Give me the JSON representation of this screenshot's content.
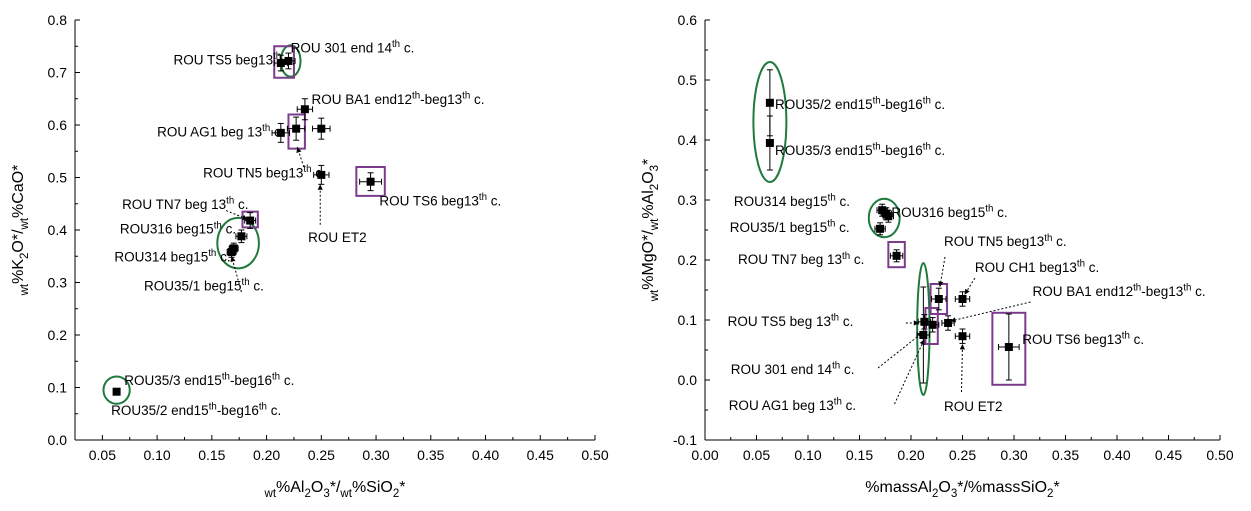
{
  "chart_data": [
    {
      "type": "scatter",
      "xlim": [
        0.025,
        0.5
      ],
      "ylim": [
        0.0,
        0.8
      ],
      "x_ticks": [
        "0.05",
        "0.10",
        "0.15",
        "0.20",
        "0.25",
        "0.30",
        "0.35",
        "0.40",
        "0.45",
        "0.50"
      ],
      "y_ticks": [
        "0.0",
        "0.1",
        "0.2",
        "0.3",
        "0.4",
        "0.5",
        "0.6",
        "0.7",
        "0.8"
      ],
      "xlabel": [
        {
          "t": "wt",
          "s": "sub"
        },
        {
          "t": "%Al"
        },
        {
          "t": "2",
          "s": "sub"
        },
        {
          "t": "O"
        },
        {
          "t": "3",
          "s": "sub"
        },
        {
          "t": "*/"
        },
        {
          "t": "wt",
          "s": "sub"
        },
        {
          "t": "%SiO"
        },
        {
          "t": "2",
          "s": "sub"
        },
        {
          "t": "*"
        }
      ],
      "ylabel": [
        {
          "t": "wt",
          "s": "sub"
        },
        {
          "t": "%K"
        },
        {
          "t": "2",
          "s": "sub"
        },
        {
          "t": "O*/"
        },
        {
          "t": "wt",
          "s": "sub"
        },
        {
          "t": "%CaO*"
        }
      ],
      "points": [
        {
          "x": 0.063,
          "y": 0.092,
          "xerr": 0.002,
          "yerr": 0.005
        },
        {
          "x": 0.213,
          "y": 0.718,
          "xerr": 0.006,
          "yerr": 0.015
        },
        {
          "x": 0.22,
          "y": 0.722,
          "xerr": 0.006,
          "yerr": 0.015
        },
        {
          "x": 0.213,
          "y": 0.585,
          "xerr": 0.008,
          "yerr": 0.018
        },
        {
          "x": 0.227,
          "y": 0.593,
          "xerr": 0.008,
          "yerr": 0.022
        },
        {
          "x": 0.235,
          "y": 0.63,
          "xerr": 0.007,
          "yerr": 0.02
        },
        {
          "x": 0.25,
          "y": 0.593,
          "xerr": 0.008,
          "yerr": 0.02
        },
        {
          "x": 0.25,
          "y": 0.505,
          "xerr": 0.007,
          "yerr": 0.018
        },
        {
          "x": 0.295,
          "y": 0.492,
          "xerr": 0.01,
          "yerr": 0.017
        },
        {
          "x": 0.185,
          "y": 0.418,
          "xerr": 0.005,
          "yerr": 0.015
        },
        {
          "x": 0.177,
          "y": 0.388,
          "xerr": 0.005,
          "yerr": 0.012
        },
        {
          "x": 0.17,
          "y": 0.365,
          "xerr": 0.004,
          "yerr": 0.01
        },
        {
          "x": 0.168,
          "y": 0.358,
          "xerr": 0.004,
          "yerr": 0.01
        }
      ],
      "ellipses": [
        {
          "x": 0.063,
          "y": 0.095,
          "rx": 0.012,
          "ry": 0.026
        },
        {
          "x": 0.222,
          "y": 0.722,
          "rx": 0.009,
          "ry": 0.03
        },
        {
          "x": 0.174,
          "y": 0.375,
          "rx": 0.019,
          "ry": 0.048
        }
      ],
      "boxes": [
        {
          "x0": 0.207,
          "x1": 0.225,
          "y0": 0.69,
          "y1": 0.75
        },
        {
          "x0": 0.22,
          "x1": 0.235,
          "y0": 0.555,
          "y1": 0.62
        },
        {
          "x0": 0.178,
          "x1": 0.192,
          "y0": 0.405,
          "y1": 0.435
        },
        {
          "x0": 0.282,
          "x1": 0.308,
          "y0": 0.465,
          "y1": 0.52
        }
      ],
      "annotations": [
        {
          "parts": [
            {
              "t": "ROU TS5 beg13"
            },
            {
              "t": "th",
              "s": "sup"
            },
            {
              "t": " c."
            }
          ],
          "x": 0.115,
          "y": 0.715
        },
        {
          "parts": [
            {
              "t": "ROU 301 end 14"
            },
            {
              "t": "th",
              "s": "sup"
            },
            {
              "t": " c."
            }
          ],
          "x": 0.222,
          "y": 0.738
        },
        {
          "parts": [
            {
              "t": "ROU BA1 end12"
            },
            {
              "t": "th",
              "s": "sup"
            },
            {
              "t": "-beg13"
            },
            {
              "t": "th",
              "s": "sup"
            },
            {
              "t": " c."
            }
          ],
          "x": 0.241,
          "y": 0.64
        },
        {
          "parts": [
            {
              "t": "ROU AG1 beg 13"
            },
            {
              "t": "th",
              "s": "sup"
            },
            {
              "t": " c."
            }
          ],
          "x": 0.1,
          "y": 0.578
        },
        {
          "parts": [
            {
              "t": "ROU TN5 beg13"
            },
            {
              "t": "th",
              "s": "sup"
            },
            {
              "t": " c."
            }
          ],
          "x": 0.142,
          "y": 0.5
        },
        {
          "parts": [
            {
              "t": "ROU TS6 beg13"
            },
            {
              "t": "th",
              "s": "sup"
            },
            {
              "t": " c."
            }
          ],
          "x": 0.303,
          "y": 0.447
        },
        {
          "parts": [
            {
              "t": "ROU TN7 beg 13"
            },
            {
              "t": "th",
              "s": "sup"
            },
            {
              "t": " c."
            }
          ],
          "x": 0.068,
          "y": 0.44
        },
        {
          "parts": [
            {
              "t": "ROU ET2"
            }
          ],
          "x": 0.238,
          "y": 0.377
        },
        {
          "parts": [
            {
              "t": "ROU316 beg15"
            },
            {
              "t": "th",
              "s": "sup"
            },
            {
              "t": " c."
            }
          ],
          "x": 0.066,
          "y": 0.393
        },
        {
          "parts": [
            {
              "t": "ROU314 beg15"
            },
            {
              "t": "th",
              "s": "sup"
            },
            {
              "t": " c."
            }
          ],
          "x": 0.061,
          "y": 0.34
        },
        {
          "parts": [
            {
              "t": "ROU35/1 beg15"
            },
            {
              "t": "th",
              "s": "sup"
            },
            {
              "t": " c."
            }
          ],
          "x": 0.088,
          "y": 0.285
        },
        {
          "parts": [
            {
              "t": "ROU35/3 end15"
            },
            {
              "t": "th",
              "s": "sup"
            },
            {
              "t": "-beg16"
            },
            {
              "t": "th",
              "s": "sup"
            },
            {
              "t": " c."
            }
          ],
          "x": 0.07,
          "y": 0.105
        },
        {
          "parts": [
            {
              "t": "ROU35/2 end15"
            },
            {
              "t": "th",
              "s": "sup"
            },
            {
              "t": "-beg16"
            },
            {
              "t": "th",
              "s": "sup"
            },
            {
              "t": " c."
            }
          ],
          "x": 0.058,
          "y": 0.048
        }
      ],
      "arrows": [
        {
          "x1": 0.234,
          "y1": 0.52,
          "x2": 0.228,
          "y2": 0.558
        },
        {
          "x1": 0.249,
          "y1": 0.41,
          "x2": 0.249,
          "y2": 0.487
        },
        {
          "x1": 0.163,
          "y1": 0.437,
          "x2": 0.183,
          "y2": 0.42
        },
        {
          "x1": 0.177,
          "y1": 0.282,
          "x2": 0.168,
          "y2": 0.35
        }
      ]
    },
    {
      "type": "scatter",
      "xlim": [
        0.0,
        0.5
      ],
      "ylim": [
        -0.1,
        0.6
      ],
      "x_ticks": [
        "0.00",
        "0.05",
        "0.10",
        "0.15",
        "0.20",
        "0.25",
        "0.30",
        "0.35",
        "0.40",
        "0.45",
        "0.50"
      ],
      "y_ticks": [
        "-0.1",
        "0.0",
        "0.1",
        "0.2",
        "0.3",
        "0.4",
        "0.5",
        "0.6"
      ],
      "xlabel": [
        {
          "t": "%massAl"
        },
        {
          "t": "2",
          "s": "sub"
        },
        {
          "t": "O"
        },
        {
          "t": "3",
          "s": "sub"
        },
        {
          "t": "*/%massSiO"
        },
        {
          "t": "2",
          "s": "sub"
        },
        {
          "t": "*"
        }
      ],
      "ylabel": [
        {
          "t": "wt",
          "s": "sub"
        },
        {
          "t": "%MgO*/"
        },
        {
          "t": "wt",
          "s": "sub"
        },
        {
          "t": "%Al"
        },
        {
          "t": "2",
          "s": "sub"
        },
        {
          "t": "O"
        },
        {
          "t": "3",
          "s": "sub"
        },
        {
          "t": "*"
        }
      ],
      "points": [
        {
          "x": 0.063,
          "y": 0.462,
          "xerr": 0.002,
          "yerr": 0.055
        },
        {
          "x": 0.063,
          "y": 0.395,
          "xerr": 0.002,
          "yerr": 0.045
        },
        {
          "x": 0.172,
          "y": 0.283,
          "xerr": 0.005,
          "yerr": 0.01
        },
        {
          "x": 0.176,
          "y": 0.277,
          "xerr": 0.005,
          "yerr": 0.01
        },
        {
          "x": 0.178,
          "y": 0.273,
          "xerr": 0.005,
          "yerr": 0.01
        },
        {
          "x": 0.17,
          "y": 0.252,
          "xerr": 0.005,
          "yerr": 0.01
        },
        {
          "x": 0.186,
          "y": 0.207,
          "xerr": 0.006,
          "yerr": 0.01
        },
        {
          "x": 0.227,
          "y": 0.135,
          "xerr": 0.007,
          "yerr": 0.018
        },
        {
          "x": 0.25,
          "y": 0.135,
          "xerr": 0.007,
          "yerr": 0.012
        },
        {
          "x": 0.213,
          "y": 0.097,
          "xerr": 0.006,
          "yerr": 0.012
        },
        {
          "x": 0.221,
          "y": 0.092,
          "xerr": 0.006,
          "yerr": 0.012
        },
        {
          "x": 0.236,
          "y": 0.095,
          "xerr": 0.006,
          "yerr": 0.012
        },
        {
          "x": 0.212,
          "y": 0.075,
          "xerr": 0.006,
          "yerr": 0.08
        },
        {
          "x": 0.25,
          "y": 0.073,
          "xerr": 0.007,
          "yerr": 0.012
        },
        {
          "x": 0.295,
          "y": 0.055,
          "xerr": 0.01,
          "yerr": 0.055
        }
      ],
      "ellipses": [
        {
          "x": 0.063,
          "y": 0.43,
          "rx": 0.016,
          "ry": 0.1
        },
        {
          "x": 0.174,
          "y": 0.27,
          "rx": 0.015,
          "ry": 0.032
        },
        {
          "x": 0.212,
          "y": 0.085,
          "rx": 0.006,
          "ry": 0.11
        }
      ],
      "boxes": [
        {
          "x0": 0.178,
          "x1": 0.194,
          "y0": 0.188,
          "y1": 0.23
        },
        {
          "x0": 0.219,
          "x1": 0.235,
          "y0": 0.11,
          "y1": 0.16
        },
        {
          "x0": 0.214,
          "x1": 0.226,
          "y0": 0.06,
          "y1": 0.12
        },
        {
          "x0": 0.279,
          "x1": 0.311,
          "y0": -0.008,
          "y1": 0.112
        }
      ],
      "annotations": [
        {
          "parts": [
            {
              "t": "ROU35/2 end15"
            },
            {
              "t": "th",
              "s": "sup"
            },
            {
              "t": "-beg16"
            },
            {
              "t": "th",
              "s": "sup"
            },
            {
              "t": " c."
            }
          ],
          "x": 0.068,
          "y": 0.452
        },
        {
          "parts": [
            {
              "t": "ROU35/3 end15"
            },
            {
              "t": "th",
              "s": "sup"
            },
            {
              "t": "-beg16"
            },
            {
              "t": "th",
              "s": "sup"
            },
            {
              "t": " c."
            }
          ],
          "x": 0.068,
          "y": 0.375
        },
        {
          "parts": [
            {
              "t": "ROU314 beg15"
            },
            {
              "t": "th",
              "s": "sup"
            },
            {
              "t": " c."
            }
          ],
          "x": 0.028,
          "y": 0.29
        },
        {
          "parts": [
            {
              "t": "ROU316 beg15"
            },
            {
              "t": "th",
              "s": "sup"
            },
            {
              "t": " c."
            }
          ],
          "x": 0.181,
          "y": 0.272
        },
        {
          "parts": [
            {
              "t": "ROU35/1 beg15"
            },
            {
              "t": "th",
              "s": "sup"
            },
            {
              "t": " c."
            }
          ],
          "x": 0.024,
          "y": 0.247
        },
        {
          "parts": [
            {
              "t": "ROU TN5 beg13"
            },
            {
              "t": "th",
              "s": "sup"
            },
            {
              "t": " c."
            }
          ],
          "x": 0.232,
          "y": 0.223
        },
        {
          "parts": [
            {
              "t": "ROU TN7 beg 13"
            },
            {
              "t": "th",
              "s": "sup"
            },
            {
              "t": " c."
            }
          ],
          "x": 0.032,
          "y": 0.193
        },
        {
          "parts": [
            {
              "t": "ROU CH1 beg13"
            },
            {
              "t": "th",
              "s": "sup"
            },
            {
              "t": " c."
            }
          ],
          "x": 0.262,
          "y": 0.18
        },
        {
          "parts": [
            {
              "t": "ROU BA1 end12"
            },
            {
              "t": "th",
              "s": "sup"
            },
            {
              "t": "-beg13"
            },
            {
              "t": "th",
              "s": "sup"
            },
            {
              "t": " c."
            }
          ],
          "x": 0.318,
          "y": 0.14
        },
        {
          "parts": [
            {
              "t": "ROU TS5 beg 13"
            },
            {
              "t": "th",
              "s": "sup"
            },
            {
              "t": " c."
            }
          ],
          "x": 0.022,
          "y": 0.09
        },
        {
          "parts": [
            {
              "t": "ROU TS6 beg13"
            },
            {
              "t": "th",
              "s": "sup"
            },
            {
              "t": " c."
            }
          ],
          "x": 0.308,
          "y": 0.06
        },
        {
          "parts": [
            {
              "t": "ROU 301 end 14"
            },
            {
              "t": "th",
              "s": "sup"
            },
            {
              "t": " c."
            }
          ],
          "x": 0.025,
          "y": 0.01
        },
        {
          "parts": [
            {
              "t": "ROU AG1 beg 13"
            },
            {
              "t": "th",
              "s": "sup"
            },
            {
              "t": " c."
            }
          ],
          "x": 0.023,
          "y": -0.05
        },
        {
          "parts": [
            {
              "t": "ROU ET2"
            }
          ],
          "x": 0.232,
          "y": -0.052
        }
      ],
      "arrows": [
        {
          "x1": 0.233,
          "y1": 0.205,
          "x2": 0.228,
          "y2": 0.155
        },
        {
          "x1": 0.262,
          "y1": 0.17,
          "x2": 0.252,
          "y2": 0.142
        },
        {
          "x1": 0.316,
          "y1": 0.13,
          "x2": 0.238,
          "y2": 0.098
        },
        {
          "x1": 0.195,
          "y1": 0.095,
          "x2": 0.208,
          "y2": 0.095
        },
        {
          "x1": 0.168,
          "y1": 0.02,
          "x2": 0.212,
          "y2": 0.08
        },
        {
          "x1": 0.184,
          "y1": -0.04,
          "x2": 0.213,
          "y2": 0.068
        },
        {
          "x1": 0.249,
          "y1": -0.02,
          "x2": 0.25,
          "y2": 0.06
        }
      ]
    }
  ]
}
